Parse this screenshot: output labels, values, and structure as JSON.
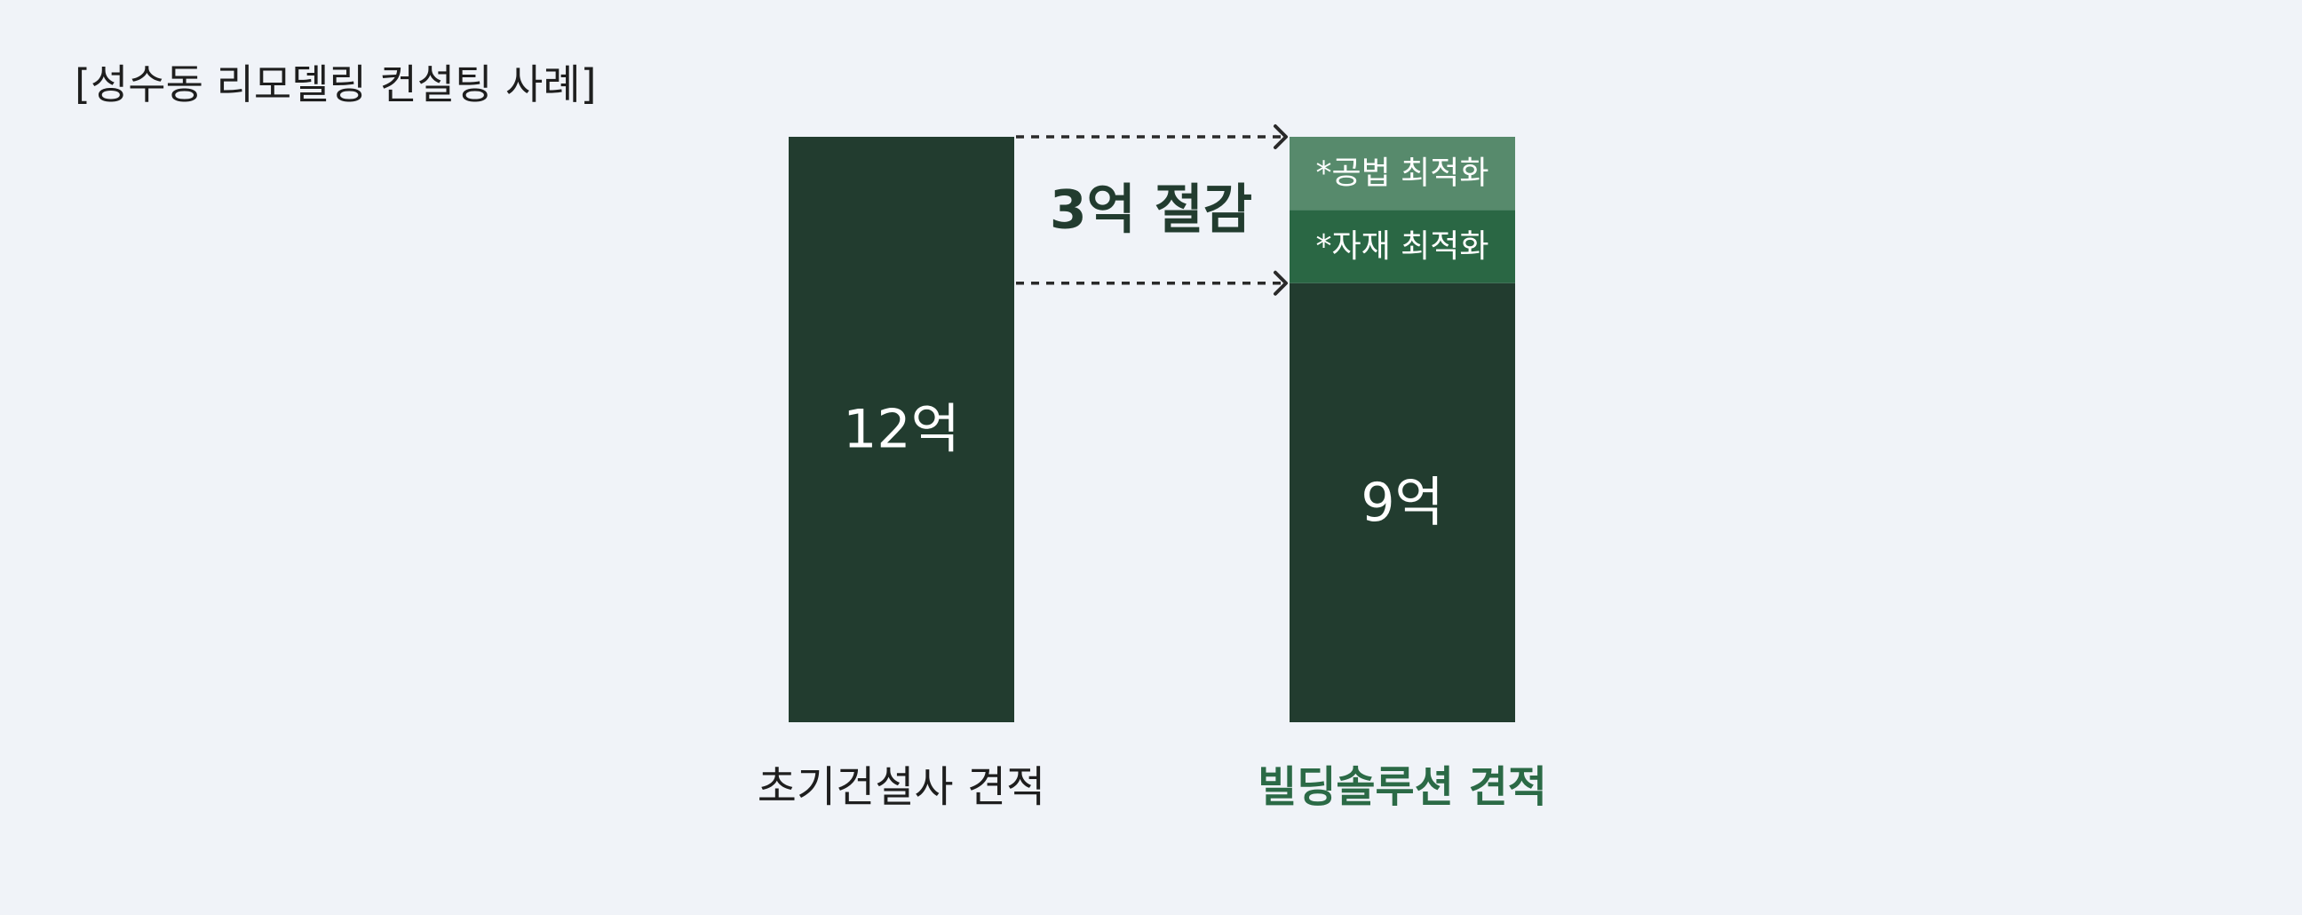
{
  "title": "[성수동 리모델링 컨설팅 사례]",
  "colors": {
    "background": "#f0f3f8",
    "bar_base": "#223c2f",
    "segment_method": "#578a6c",
    "segment_material": "#2a6744",
    "saving_text": "#223c2f",
    "label_default": "#1e1e1e",
    "label_highlight": "#2b6a46"
  },
  "chart_data": {
    "type": "bar",
    "title": "[성수동 리모델링 컨설팅 사례]",
    "categories": [
      "초기건설사 견적",
      "빌딩솔루션 견적"
    ],
    "unit": "억",
    "ylim": [
      0,
      12
    ],
    "grid": false,
    "bars": [
      {
        "category": "초기건설사 견적",
        "total": 12,
        "value_label": "12억",
        "highlight": false,
        "segments": []
      },
      {
        "category": "빌딩솔루션 견적",
        "total": 9,
        "value_label": "9억",
        "highlight": true,
        "segments": [
          {
            "label": "*자재 최적화",
            "value": 1.5
          },
          {
            "label": "*공법 최적화",
            "value": 1.5
          }
        ]
      }
    ],
    "annotation": {
      "label": "3억 절감",
      "value": 3
    }
  },
  "icons": {
    "saving_arrows": "dashed-arrow-right"
  }
}
